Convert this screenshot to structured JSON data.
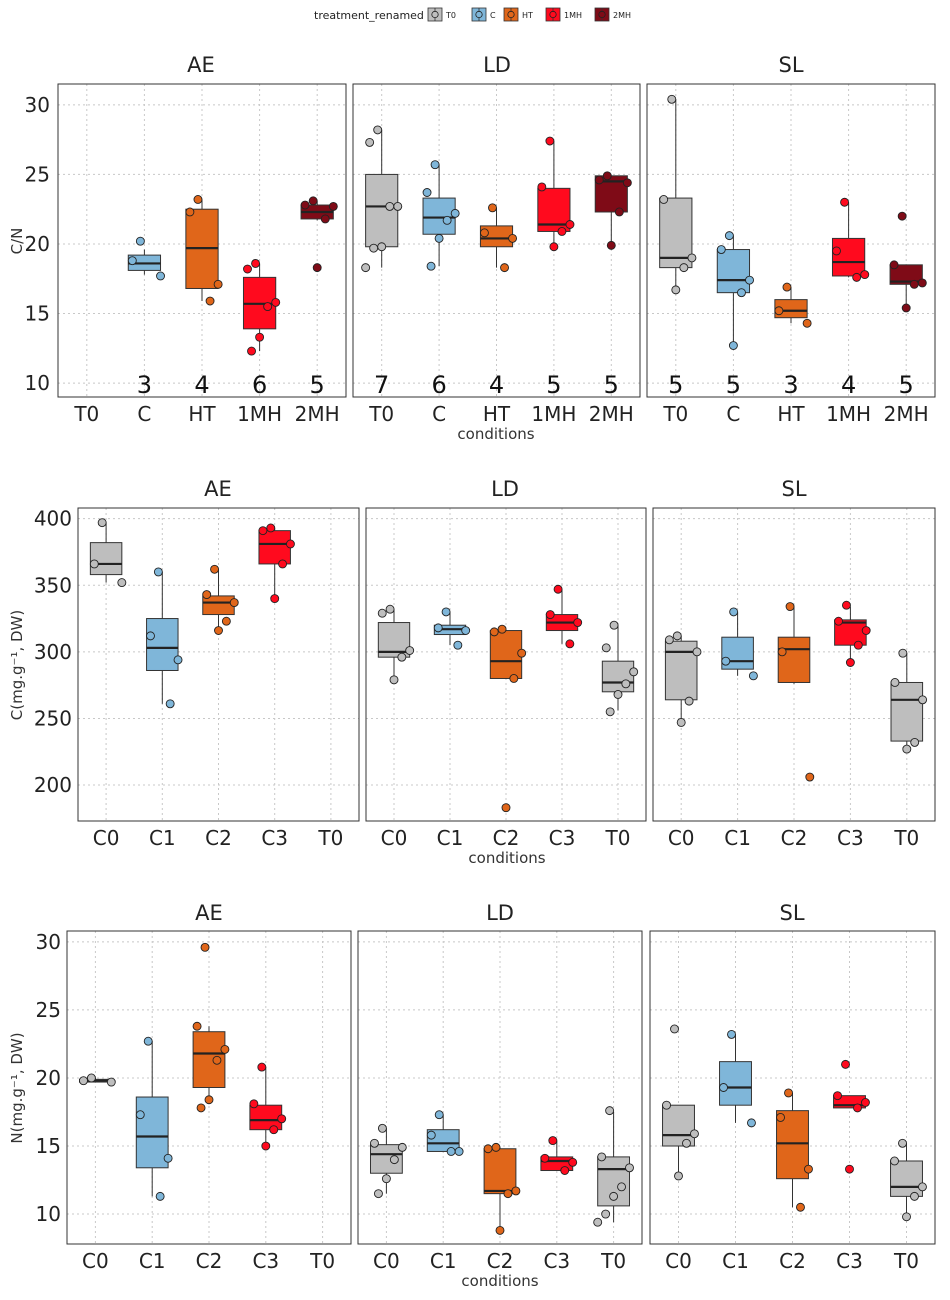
{
  "legend": {
    "title": "treatment_renamed",
    "items": [
      {
        "label": "T0",
        "color": "#bebebe"
      },
      {
        "label": "C",
        "color": "#7fb6d9"
      },
      {
        "label": "HT",
        "color": "#e0661a"
      },
      {
        "label": "1MH",
        "color": "#ff0a1e"
      },
      {
        "label": "2MH",
        "color": "#7f0b17"
      }
    ]
  },
  "colors": {
    "T0": "#bebebe",
    "C": "#7fb6d9",
    "HT": "#e0661a",
    "1MH": "#ff0a1e",
    "2MH": "#7f0b17",
    "C0": "#bebebe",
    "C1": "#7fb6d9",
    "C2": "#e0661a",
    "C3": "#ff0a1e"
  },
  "chart_data": [
    {
      "type": "box",
      "ylabel": "C/N",
      "xlabel": "conditions",
      "ylim": [
        9,
        31.5
      ],
      "yticks": [
        10,
        15,
        20,
        25,
        30
      ],
      "categories": [
        "T0",
        "C",
        "HT",
        "1MH",
        "2MH"
      ],
      "facets": [
        {
          "title": "AE",
          "counts": {
            "T0": "",
            "C": "3",
            "HT": "4",
            "1MH": "6",
            "2MH": "5"
          },
          "boxes": [
            {
              "category": "T0",
              "stats": null,
              "points": []
            },
            {
              "category": "C",
              "stats": [
                17.8,
                18.1,
                18.6,
                19.2,
                19.6
              ],
              "points": [
                20.2,
                18.8,
                17.7
              ]
            },
            {
              "category": "HT",
              "stats": [
                15.9,
                16.8,
                19.7,
                22.5,
                23.2
              ],
              "points": [
                23.2,
                22.3,
                17.1,
                15.9
              ]
            },
            {
              "category": "1MH",
              "stats": [
                12.3,
                13.9,
                15.7,
                17.6,
                18.6
              ],
              "points": [
                18.6,
                18.2,
                15.8,
                15.5,
                13.3,
                12.3
              ]
            },
            {
              "category": "2MH",
              "stats": [
                21.7,
                21.8,
                22.3,
                22.8,
                23.1
              ],
              "points": [
                23.1,
                22.8,
                22.7,
                21.8,
                18.3
              ]
            }
          ]
        },
        {
          "title": "LD",
          "counts": {
            "T0": "7",
            "C": "6",
            "HT": "4",
            "1MH": "5",
            "2MH": "5"
          },
          "boxes": [
            {
              "category": "T0",
              "stats": [
                18.3,
                19.8,
                22.7,
                25.0,
                28.2
              ],
              "points": [
                28.2,
                27.3,
                22.7,
                22.7,
                19.8,
                19.7,
                18.3
              ]
            },
            {
              "category": "C",
              "stats": [
                18.4,
                20.7,
                21.9,
                23.3,
                25.7
              ],
              "points": [
                25.7,
                23.7,
                22.2,
                21.7,
                20.4,
                18.4
              ]
            },
            {
              "category": "HT",
              "stats": [
                18.3,
                19.8,
                20.4,
                21.3,
                22.6
              ],
              "points": [
                22.6,
                20.8,
                20.4,
                18.3
              ]
            },
            {
              "category": "1MH",
              "stats": [
                19.8,
                20.9,
                21.4,
                24.0,
                27.4
              ],
              "points": [
                27.4,
                24.1,
                21.4,
                20.9,
                19.8
              ]
            },
            {
              "category": "2MH",
              "stats": [
                19.9,
                22.3,
                24.5,
                24.9,
                24.9
              ],
              "points": [
                24.9,
                24.6,
                24.4,
                22.3,
                19.9
              ]
            }
          ]
        },
        {
          "title": "SL",
          "counts": {
            "T0": "5",
            "C": "5",
            "HT": "3",
            "1MH": "4",
            "2MH": "5"
          },
          "boxes": [
            {
              "category": "T0",
              "stats": [
                16.7,
                18.3,
                19.0,
                23.3,
                30.4
              ],
              "points": [
                30.4,
                23.2,
                19.0,
                18.3,
                16.7
              ]
            },
            {
              "category": "C",
              "stats": [
                12.7,
                16.5,
                17.4,
                19.6,
                20.6
              ],
              "points": [
                20.6,
                19.6,
                17.4,
                16.5,
                12.7
              ]
            },
            {
              "category": "HT",
              "stats": [
                14.3,
                14.7,
                15.2,
                16.0,
                16.9
              ],
              "points": [
                16.9,
                15.2,
                14.3
              ]
            },
            {
              "category": "1MH",
              "stats": [
                17.6,
                17.7,
                18.7,
                20.4,
                23.0
              ],
              "points": [
                23.0,
                19.5,
                17.8,
                17.6
              ]
            },
            {
              "category": "2MH",
              "stats": [
                15.4,
                17.1,
                17.3,
                18.5,
                18.5
              ],
              "points": [
                22.0,
                18.5,
                17.2,
                17.1,
                15.4
              ]
            }
          ]
        }
      ]
    },
    {
      "type": "box",
      "ylabel": "C(mg.g⁻¹, DW)",
      "xlabel": "conditions",
      "ylim": [
        173,
        408
      ],
      "yticks": [
        200,
        250,
        300,
        350,
        400
      ],
      "categories": [
        "C0",
        "C1",
        "C2",
        "C3",
        "T0"
      ],
      "facets": [
        {
          "title": "AE",
          "boxes": [
            {
              "category": "C0",
              "stats": [
                352,
                358,
                366,
                382,
                397
              ],
              "points": [
                397,
                366,
                352
              ]
            },
            {
              "category": "C1",
              "stats": [
                261,
                286,
                303,
                325,
                360
              ],
              "points": [
                360,
                312,
                294,
                261
              ]
            },
            {
              "category": "C2",
              "stats": [
                316,
                328,
                337,
                342,
                362
              ],
              "points": [
                362,
                343,
                337,
                323,
                316
              ]
            },
            {
              "category": "C3",
              "stats": [
                341,
                366,
                381,
                391,
                393
              ],
              "points": [
                393,
                391,
                381,
                366,
                340
              ]
            },
            {
              "category": "T0",
              "stats": null,
              "points": []
            }
          ]
        },
        {
          "title": "LD",
          "boxes": [
            {
              "category": "C0",
              "stats": [
                280,
                296,
                300,
                322,
                332
              ],
              "points": [
                332,
                329,
                301,
                296,
                279
              ]
            },
            {
              "category": "C1",
              "stats": [
                305,
                313,
                317,
                320,
                330
              ],
              "points": [
                330,
                318,
                316,
                305
              ]
            },
            {
              "category": "C2",
              "stats": [
                280,
                280,
                293,
                316,
                317
              ],
              "points": [
                317,
                315,
                299,
                280,
                183
              ]
            },
            {
              "category": "C3",
              "stats": [
                306,
                316,
                322,
                328,
                347
              ],
              "points": [
                347,
                328,
                322,
                306
              ]
            },
            {
              "category": "T0",
              "stats": [
                256,
                270,
                277,
                293,
                320
              ],
              "points": [
                320,
                303,
                285,
                276,
                268,
                255
              ]
            }
          ]
        },
        {
          "title": "SL",
          "boxes": [
            {
              "category": "C0",
              "stats": [
                247,
                264,
                300,
                308,
                312
              ],
              "points": [
                312,
                309,
                300,
                263,
                247
              ]
            },
            {
              "category": "C1",
              "stats": [
                282,
                287,
                293,
                311,
                330
              ],
              "points": [
                330,
                293,
                282
              ]
            },
            {
              "category": "C2",
              "stats": [
                276,
                277,
                302,
                311,
                334
              ],
              "points": [
                334,
                300,
                206
              ]
            },
            {
              "category": "C3",
              "stats": [
                292,
                305,
                322,
                324,
                334
              ],
              "points": [
                335,
                323,
                316,
                305,
                292
              ]
            },
            {
              "category": "T0",
              "stats": [
                228,
                233,
                264,
                277,
                299
              ],
              "points": [
                299,
                277,
                264,
                232,
                227
              ]
            }
          ]
        }
      ]
    },
    {
      "type": "box",
      "ylabel": "N(mg.g⁻¹, DW)",
      "xlabel": "conditions",
      "ylim": [
        7.8,
        30.8
      ],
      "yticks": [
        10,
        15,
        20,
        25,
        30
      ],
      "categories": [
        "C0",
        "C1",
        "C2",
        "C3",
        "T0"
      ],
      "facets": [
        {
          "title": "AE",
          "boxes": [
            {
              "category": "C0",
              "stats": [
                19.7,
                19.7,
                19.8,
                19.9,
                20.0
              ],
              "points": [
                20.0,
                19.8,
                19.7
              ]
            },
            {
              "category": "C1",
              "stats": [
                11.3,
                13.4,
                15.7,
                18.6,
                22.7
              ],
              "points": [
                22.7,
                17.3,
                14.1,
                11.3
              ]
            },
            {
              "category": "C2",
              "stats": [
                18.4,
                19.3,
                21.8,
                23.4,
                23.8
              ],
              "points": [
                29.6,
                23.8,
                22.1,
                21.3,
                18.4,
                17.8
              ]
            },
            {
              "category": "C3",
              "stats": [
                15.0,
                16.2,
                16.9,
                18.0,
                20.8
              ],
              "points": [
                20.8,
                18.1,
                17.0,
                16.2,
                15.0
              ]
            },
            {
              "category": "T0",
              "stats": null,
              "points": []
            }
          ]
        },
        {
          "title": "LD",
          "boxes": [
            {
              "category": "C0",
              "stats": [
                11.5,
                13.0,
                14.4,
                15.1,
                16.3
              ],
              "points": [
                16.3,
                15.2,
                14.9,
                14.0,
                12.6,
                11.5
              ]
            },
            {
              "category": "C1",
              "stats": [
                14.6,
                14.6,
                15.2,
                16.2,
                17.3
              ],
              "points": [
                17.3,
                15.8,
                14.6,
                14.6
              ]
            },
            {
              "category": "C2",
              "stats": [
                8.8,
                11.5,
                11.7,
                14.8,
                14.9
              ],
              "points": [
                14.9,
                14.8,
                11.7,
                11.5,
                8.8
              ]
            },
            {
              "category": "C3",
              "stats": [
                13.2,
                13.2,
                13.9,
                14.2,
                15.4
              ],
              "points": [
                15.4,
                14.1,
                13.8,
                13.2
              ]
            },
            {
              "category": "T0",
              "stats": [
                9.4,
                10.6,
                13.3,
                14.2,
                17.5
              ],
              "points": [
                17.6,
                14.2,
                13.4,
                12.0,
                11.3,
                10.0,
                9.4
              ]
            }
          ]
        },
        {
          "title": "SL",
          "boxes": [
            {
              "category": "C0",
              "stats": [
                12.8,
                15.0,
                15.8,
                18.0,
                18.0
              ],
              "points": [
                23.6,
                18.0,
                15.9,
                15.2,
                12.8
              ]
            },
            {
              "category": "C1",
              "stats": [
                16.7,
                18.0,
                19.3,
                21.2,
                23.2
              ],
              "points": [
                23.2,
                19.3,
                16.7
              ]
            },
            {
              "category": "C2",
              "stats": [
                10.5,
                12.6,
                15.2,
                17.6,
                18.9
              ],
              "points": [
                18.9,
                17.1,
                13.3,
                10.5
              ]
            },
            {
              "category": "C3",
              "stats": [
                17.8,
                17.8,
                18.0,
                18.7,
                18.7
              ],
              "points": [
                21.0,
                18.7,
                18.2,
                17.8,
                13.3
              ]
            },
            {
              "category": "T0",
              "stats": [
                9.8,
                11.3,
                12.0,
                13.9,
                15.2
              ],
              "points": [
                15.2,
                13.9,
                12.0,
                11.3,
                9.8
              ]
            }
          ]
        }
      ]
    }
  ]
}
